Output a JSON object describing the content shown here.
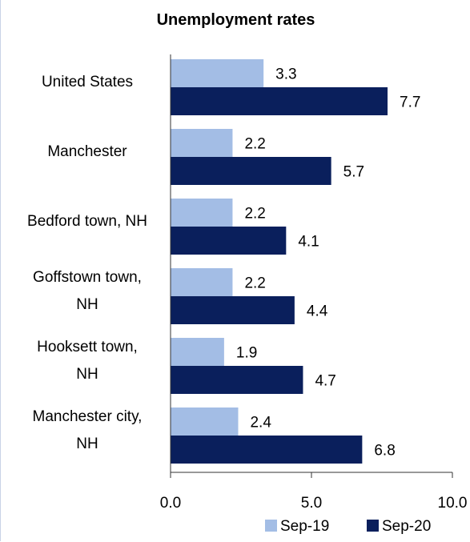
{
  "chart_data": {
    "type": "bar",
    "orientation": "horizontal",
    "title": "Unemployment rates",
    "categories": [
      [
        "United States"
      ],
      [
        "Manchester"
      ],
      [
        "Bedford town, NH"
      ],
      [
        "Goffstown town,",
        "NH"
      ],
      [
        "Hooksett town,",
        "NH"
      ],
      [
        "Manchester city,",
        "NH"
      ]
    ],
    "series": [
      {
        "name": "Sep-19",
        "color": "#a3bde5",
        "values": [
          3.3,
          2.2,
          2.2,
          2.2,
          1.9,
          2.4
        ],
        "labels": [
          "3.3",
          "2.2",
          "2.2",
          "2.2",
          "1.9",
          "2.4"
        ]
      },
      {
        "name": "Sep-20",
        "color": "#0a1f5c",
        "values": [
          7.7,
          5.7,
          4.1,
          4.4,
          4.7,
          6.8
        ],
        "labels": [
          "7.7",
          "5.7",
          "4.1",
          "4.4",
          "4.7",
          "6.8"
        ]
      }
    ],
    "xlim": [
      0,
      10
    ],
    "ticks": [
      "0.0",
      "5.0",
      "10.0"
    ],
    "tick_values": [
      0,
      5,
      10
    ],
    "grid": false,
    "legend": "bottom"
  }
}
